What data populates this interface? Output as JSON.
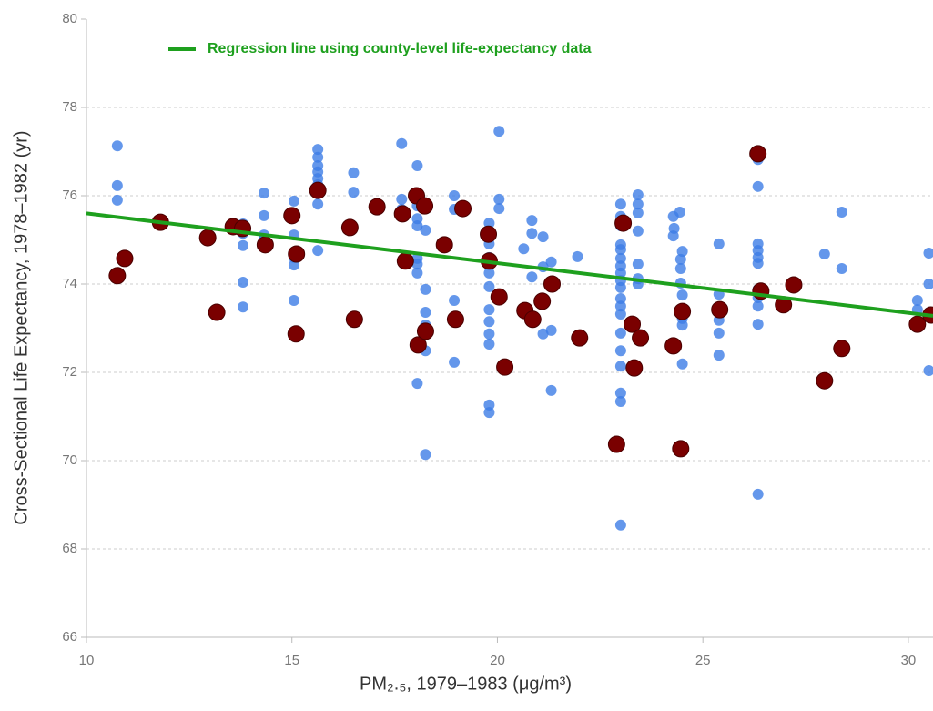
{
  "chart_data": {
    "type": "scatter",
    "xlabel": "PM₂.₅, 1979–1983 (μg/m³)",
    "ylabel": "Cross-Sectional Life Expectancy, 1978–1982 (yr)",
    "xlim": [
      10,
      30.6
    ],
    "ylim": [
      66,
      80
    ],
    "xticks": [
      10,
      15,
      20,
      25,
      30
    ],
    "yticks": [
      66,
      68,
      70,
      72,
      74,
      76,
      78,
      80
    ],
    "grid": true,
    "series": [
      {
        "color": "#3d7de6",
        "x": [
          10.75,
          10.75,
          10.75,
          13.81,
          13.81,
          13.81,
          13.81,
          13.81,
          14.32,
          14.32,
          14.32,
          14.32,
          15.05,
          15.05,
          15.05,
          15.05,
          15.05,
          15.05,
          15.63,
          15.63,
          15.63,
          15.63,
          15.63,
          15.63,
          15.63,
          15.63,
          15.63,
          16.5,
          16.5,
          17.67,
          17.67,
          17.67,
          18.05,
          18.05,
          18.05,
          18.05,
          18.05,
          18.05,
          18.05,
          18.05,
          18.25,
          18.25,
          18.25,
          18.25,
          18.25,
          18.25,
          18.95,
          18.95,
          18.95,
          18.95,
          19.8,
          19.8,
          19.8,
          19.8,
          19.8,
          19.8,
          19.8,
          19.8,
          19.8,
          19.8,
          19.8,
          19.8,
          20.04,
          20.04,
          20.04,
          20.64,
          20.64,
          20.84,
          20.84,
          20.84,
          21.11,
          21.11,
          21.11,
          21.31,
          21.31,
          21.31,
          21.95,
          23.0,
          23.0,
          23.0,
          23.0,
          23.0,
          23.0,
          23.0,
          23.0,
          23.0,
          23.0,
          23.0,
          23.0,
          23.0,
          23.0,
          23.0,
          23.0,
          23.0,
          23.0,
          23.0,
          23.42,
          23.42,
          23.42,
          23.42,
          23.42,
          23.42,
          23.42,
          24.44,
          24.28,
          24.3,
          24.28,
          24.5,
          24.46,
          24.46,
          24.46,
          24.5,
          24.5,
          24.5,
          24.5,
          25.39,
          25.39,
          25.39,
          25.39,
          25.39,
          25.39,
          26.34,
          26.34,
          26.34,
          26.34,
          26.34,
          26.34,
          26.34,
          26.34,
          26.34,
          26.34,
          26.34,
          27.96,
          28.38,
          28.38,
          30.22,
          30.22,
          30.5,
          30.5,
          30.5
        ],
        "values": [
          77.13,
          76.23,
          75.9,
          75.36,
          75.15,
          74.87,
          74.04,
          73.48,
          76.06,
          75.55,
          75.11,
          75.03,
          75.88,
          75.5,
          75.11,
          74.6,
          74.43,
          73.63,
          77.05,
          76.87,
          76.68,
          76.54,
          76.39,
          76.25,
          76.08,
          75.81,
          74.76,
          76.52,
          76.08,
          77.18,
          75.92,
          75.69,
          76.68,
          75.77,
          75.48,
          75.32,
          74.58,
          74.45,
          74.25,
          71.75,
          75.22,
          73.88,
          73.36,
          73.07,
          72.49,
          70.14,
          76.0,
          75.69,
          73.63,
          72.23,
          75.38,
          75.11,
          74.91,
          74.6,
          74.25,
          73.94,
          73.42,
          73.15,
          72.87,
          72.64,
          71.26,
          71.09,
          77.46,
          75.92,
          75.71,
          74.8,
          73.4,
          75.44,
          75.15,
          74.16,
          75.07,
          74.39,
          72.87,
          74.5,
          72.95,
          71.59,
          74.62,
          75.81,
          75.53,
          75.32,
          74.89,
          74.78,
          74.58,
          74.41,
          74.25,
          74.08,
          73.92,
          73.67,
          73.5,
          73.32,
          72.89,
          72.49,
          72.14,
          71.53,
          71.34,
          68.54,
          76.02,
          75.81,
          75.61,
          75.2,
          74.45,
          74.12,
          74.0,
          75.63,
          75.53,
          75.26,
          75.09,
          74.74,
          74.56,
          74.35,
          74.02,
          73.75,
          73.22,
          73.07,
          72.19,
          74.91,
          73.77,
          73.48,
          73.18,
          72.89,
          72.39,
          76.82,
          76.21,
          74.91,
          74.76,
          74.6,
          74.47,
          73.88,
          73.69,
          73.5,
          73.09,
          69.24,
          74.68,
          75.63,
          74.35,
          73.63,
          73.42,
          74.7,
          74.0,
          72.04
        ]
      },
      {
        "color": "#7a0000",
        "x": [
          10.75,
          10.93,
          11.8,
          12.95,
          13.17,
          13.57,
          13.8,
          14.35,
          15.0,
          15.11,
          15.1,
          15.63,
          16.41,
          16.52,
          17.07,
          17.69,
          17.76,
          18.03,
          18.07,
          18.23,
          18.25,
          18.71,
          18.98,
          19.16,
          19.78,
          19.8,
          20.04,
          20.18,
          20.67,
          20.86,
          21.09,
          21.33,
          22.0,
          22.9,
          23.06,
          23.28,
          23.48,
          23.33,
          24.28,
          24.46,
          24.5,
          25.41,
          26.34,
          26.41,
          26.96,
          27.21,
          27.96,
          28.38,
          30.22,
          30.55
        ],
        "values": [
          74.19,
          74.58,
          75.4,
          75.05,
          73.36,
          75.3,
          75.26,
          74.89,
          75.55,
          74.68,
          72.87,
          76.12,
          75.28,
          73.2,
          75.75,
          75.59,
          74.52,
          76.0,
          72.62,
          75.77,
          72.93,
          74.89,
          73.2,
          75.71,
          75.13,
          74.52,
          73.71,
          72.12,
          73.4,
          73.2,
          73.61,
          74.0,
          72.78,
          70.37,
          75.38,
          73.09,
          72.78,
          72.1,
          72.6,
          70.27,
          73.38,
          73.42,
          76.95,
          73.84,
          73.53,
          73.98,
          71.81,
          72.54,
          73.09,
          73.3
        ]
      },
      {
        "type": "line",
        "name": "Regression line using county-level life-expectancy data",
        "color": "#1ea01e",
        "x": [
          10,
          30.6
        ],
        "values": [
          75.6,
          73.28
        ]
      }
    ]
  }
}
